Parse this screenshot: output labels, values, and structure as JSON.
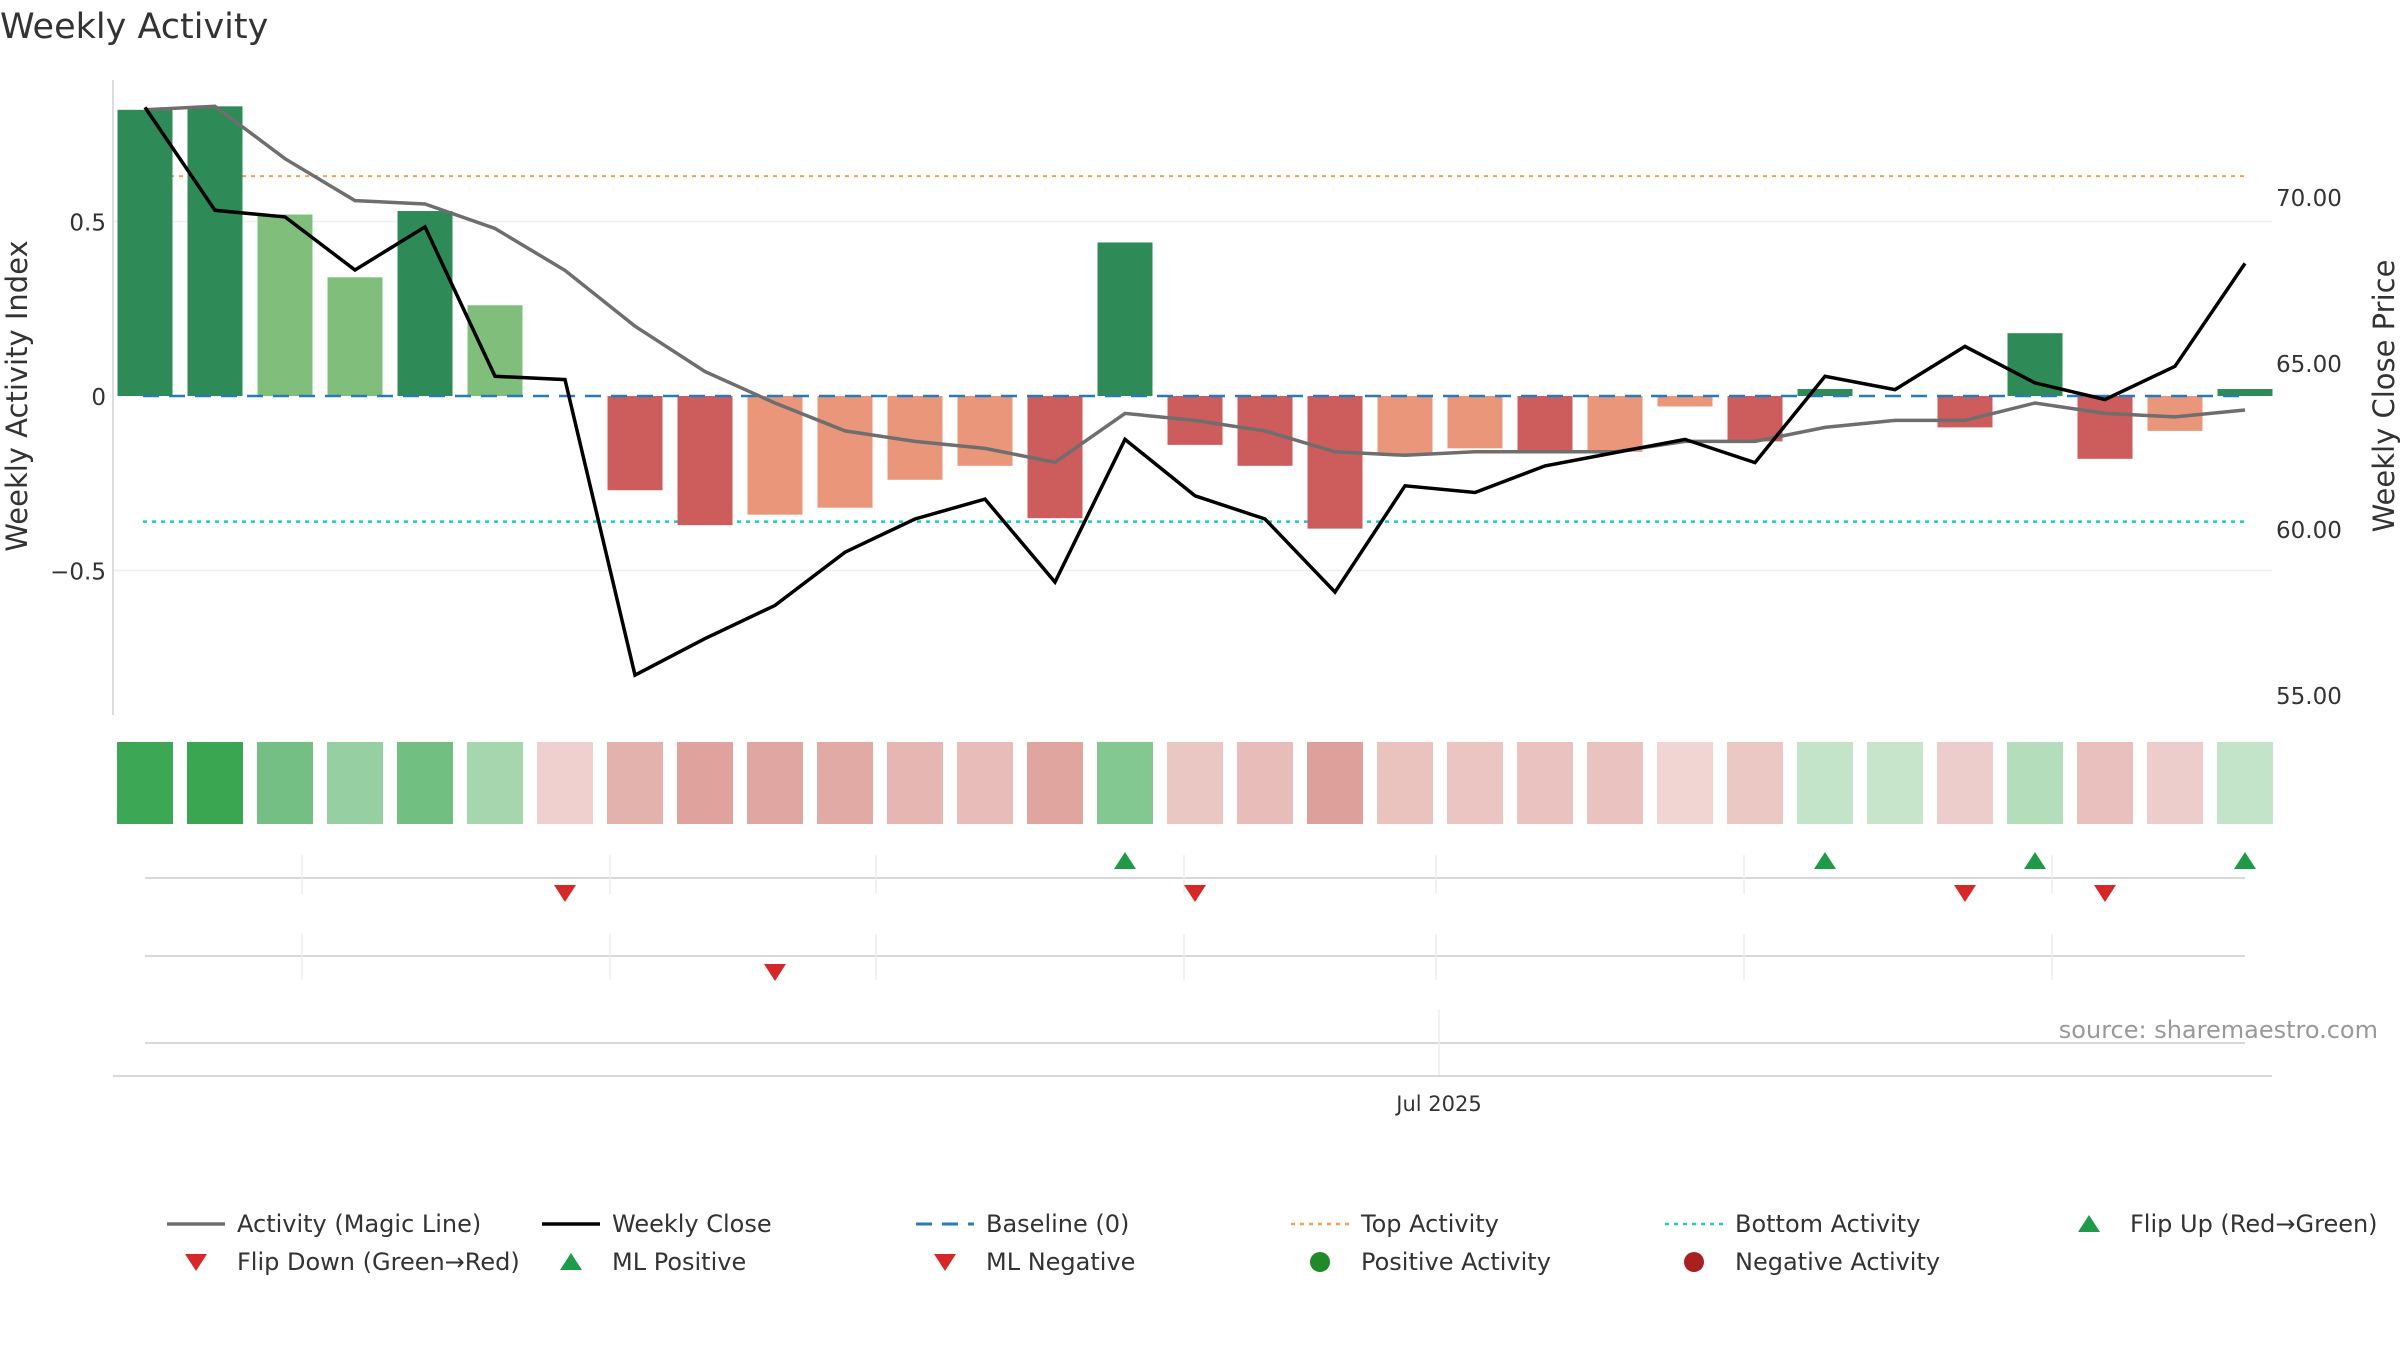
{
  "chart_data": {
    "type": "bar",
    "title": "Weekly Activity",
    "source": "source: sharemaestro.com",
    "x_tick_label": "Jul 2025",
    "x_tick_index": 19,
    "left_axis": {
      "label": "Weekly Activity Index",
      "ylim": [
        -0.9,
        0.9
      ],
      "ticks": [
        0.5,
        0,
        -0.5
      ],
      "tick_labels": [
        "0.5",
        "0",
        "−0.5"
      ]
    },
    "right_axis": {
      "label": "Weekly Close Price",
      "ylim": [
        53.6,
        74.4
      ],
      "ticks": [
        70,
        65,
        60,
        55
      ],
      "tick_labels": [
        "70.00",
        "65.00",
        "60.00",
        "55.00"
      ]
    },
    "top_activity": 0.63,
    "bottom_activity": -0.36,
    "activity_bars": [
      0.82,
      0.83,
      0.52,
      0.34,
      0.53,
      0.26,
      0,
      -0.27,
      -0.37,
      -0.34,
      -0.32,
      -0.24,
      -0.2,
      -0.35,
      0.44,
      -0.14,
      -0.2,
      -0.38,
      -0.17,
      -0.15,
      -0.16,
      -0.16,
      -0.03,
      -0.13,
      0.02,
      0,
      -0.09,
      0.18,
      -0.18,
      -0.1,
      0.02
    ],
    "bar_intensity": [
      "strong",
      "strong",
      "light",
      "light",
      "strong",
      "light",
      "none",
      "strong",
      "strong",
      "light",
      "light",
      "light",
      "light",
      "strong",
      "strong",
      "strong",
      "strong",
      "strong",
      "light",
      "light",
      "strong",
      "light",
      "light",
      "strong",
      "strong",
      "none",
      "strong",
      "strong",
      "strong",
      "light",
      "strong"
    ],
    "magic_line": [
      0.82,
      0.83,
      0.68,
      0.56,
      0.55,
      0.48,
      0.36,
      0.2,
      0.07,
      -0.02,
      -0.1,
      -0.13,
      -0.15,
      -0.19,
      -0.05,
      -0.07,
      -0.1,
      -0.16,
      -0.17,
      -0.16,
      -0.16,
      -0.16,
      -0.13,
      -0.13,
      -0.09,
      -0.07,
      -0.07,
      -0.02,
      -0.05,
      -0.06,
      -0.04
    ],
    "weekly_close": [
      72.7,
      69.6,
      69.4,
      67.8,
      69.1,
      64.6,
      64.5,
      55.6,
      56.7,
      57.7,
      59.3,
      60.3,
      60.9,
      58.4,
      62.7,
      61.0,
      60.3,
      58.1,
      61.3,
      61.1,
      61.9,
      62.3,
      62.7,
      62.0,
      64.6,
      64.2,
      65.5,
      64.4,
      63.9,
      64.9,
      68.0
    ],
    "heatmap_values": [
      0.82,
      0.83,
      0.52,
      0.34,
      0.53,
      0.26,
      -0.08,
      -0.27,
      -0.37,
      -0.34,
      -0.32,
      -0.24,
      -0.2,
      -0.35,
      0.44,
      -0.14,
      -0.2,
      -0.38,
      -0.17,
      -0.15,
      -0.16,
      -0.16,
      -0.05,
      -0.13,
      0.1,
      0.08,
      -0.1,
      0.18,
      -0.18,
      -0.1,
      0.1
    ],
    "flip_up_weeks": [
      14,
      24,
      27,
      30
    ],
    "flip_down_weeks": [
      6,
      15,
      26,
      28
    ],
    "ml_negative_weeks": [
      9
    ],
    "ml_positive_weeks": [],
    "legend": [
      {
        "label": "Activity (Magic Line)",
        "symbol": "line",
        "color": "#6e6e6e"
      },
      {
        "label": "Weekly Close",
        "symbol": "line",
        "color": "#000000"
      },
      {
        "label": "Baseline (0)",
        "symbol": "dash",
        "color": "#2a7ab5"
      },
      {
        "label": "Top Activity",
        "symbol": "dot",
        "color": "#f0a050"
      },
      {
        "label": "Bottom Activity",
        "symbol": "dot",
        "color": "#20c8c8"
      },
      {
        "label": "Flip Up (Red→Green)",
        "symbol": "tri-up",
        "color": "#1f9a48"
      },
      {
        "label": "Flip Down (Green→Red)",
        "symbol": "tri-down",
        "color": "#d62828"
      },
      {
        "label": "ML Positive",
        "symbol": "tri-up",
        "color": "#1f9a48"
      },
      {
        "label": "ML Negative",
        "symbol": "tri-down",
        "color": "#d62828"
      },
      {
        "label": "Positive Activity",
        "symbol": "circle",
        "color": "#1f8a28"
      },
      {
        "label": "Negative Activity",
        "symbol": "circle",
        "color": "#a82020"
      }
    ],
    "colors": {
      "strong_green": "#2e8b57",
      "light_green": "#7fbf7b",
      "strong_red": "#cd5c5c",
      "light_red": "#e9967a",
      "magic_line": "#6e6e6e",
      "close_line": "#000000",
      "baseline": "#2a7ab5",
      "top_line": "#f0a050",
      "bottom_line": "#20c8c8",
      "flip_up": "#1f9a48",
      "flip_down": "#d62828"
    }
  }
}
